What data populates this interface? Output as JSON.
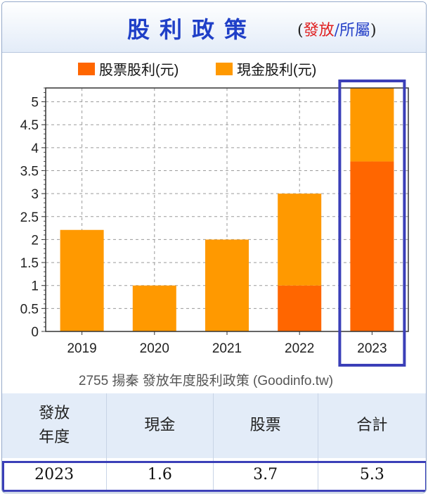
{
  "header": {
    "title": "股利政策",
    "paren_open": "(",
    "issue": "發放",
    "slash": "/",
    "belong": "所屬",
    "paren_close": ")"
  },
  "chart_data": {
    "type": "bar",
    "stacked": true,
    "categories": [
      "2019",
      "2020",
      "2021",
      "2022",
      "2023"
    ],
    "series": [
      {
        "name": "股票股利(元)",
        "color": "#ff6600",
        "values": [
          0,
          0,
          0,
          1.0,
          3.7
        ]
      },
      {
        "name": "現金股利(元)",
        "color": "#ff9900",
        "values": [
          2.21,
          1.0,
          2.0,
          2.0,
          1.6
        ]
      }
    ],
    "ylim": [
      0,
      5.3
    ],
    "yticks": [
      "0",
      "0.5",
      "1",
      "1.5",
      "2",
      "2.5",
      "3",
      "3.5",
      "4",
      "4.5",
      "5"
    ],
    "grid": true,
    "legend_position": "top",
    "highlighted_category": "2023",
    "highlight_color": "#3b3fb8",
    "caption": "2755 揚秦 發放年度股利政策 (Goodinfo.tw)"
  },
  "table": {
    "headers": [
      "發放\n年度",
      "現金",
      "股票",
      "合計"
    ],
    "row": [
      "2023",
      "1.6",
      "3.7",
      "5.3"
    ]
  }
}
